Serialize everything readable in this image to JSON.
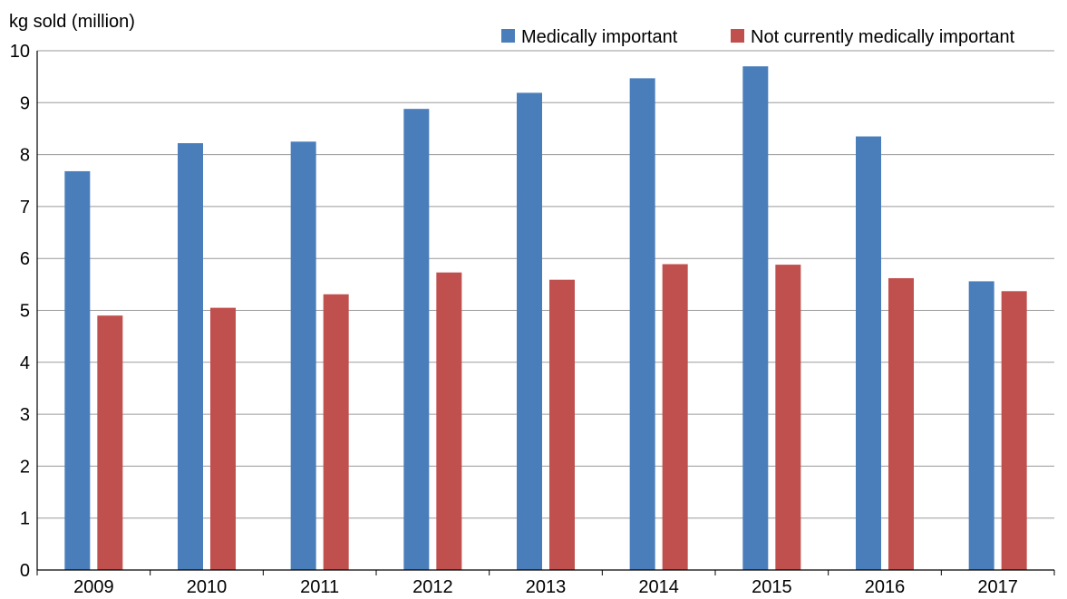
{
  "chart_data": {
    "type": "bar",
    "ylabel": "kg sold (million)",
    "xlabel": "",
    "categories": [
      "2009",
      "2010",
      "2011",
      "2012",
      "2013",
      "2014",
      "2015",
      "2016",
      "2017"
    ],
    "series": [
      {
        "name": "Medically important",
        "color": "#4a7ebb",
        "values": [
          7.68,
          8.22,
          8.25,
          8.88,
          9.19,
          9.47,
          9.7,
          8.35,
          5.56
        ]
      },
      {
        "name": "Not currently medically important",
        "color": "#c0504d",
        "values": [
          4.9,
          5.05,
          5.31,
          5.73,
          5.59,
          5.89,
          5.88,
          5.62,
          5.37
        ]
      }
    ],
    "ylim": [
      0,
      10
    ],
    "yticks": [
      0,
      1,
      2,
      3,
      4,
      5,
      6,
      7,
      8,
      9,
      10
    ],
    "grid": true,
    "legend_position": "top-right"
  }
}
